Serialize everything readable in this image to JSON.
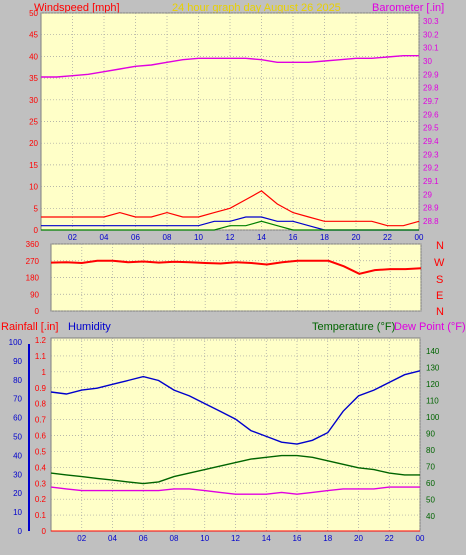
{
  "header": {
    "windspeed_label": "Windspeed [mph]",
    "title": "24 hour graph day   August 26 2025",
    "barometer_label": "Barometer [.in]"
  },
  "colors": {
    "plot_bg": "#ffffc8",
    "frame": "#c0c0c0",
    "grid": "#a0a0a0",
    "red": "#ff0000",
    "blue": "#0000cc",
    "green": "#006400",
    "magenta": "#e000e0",
    "gold": "#d4b800"
  },
  "time_axis": {
    "ticks": [
      "02",
      "04",
      "06",
      "08",
      "10",
      "12",
      "14",
      "16",
      "18",
      "20",
      "22",
      "00"
    ]
  },
  "wind_panel": {
    "left_ticks": [
      "0",
      "5",
      "10",
      "15",
      "20",
      "25",
      "30",
      "35",
      "40",
      "45",
      "50"
    ],
    "right_ticks": [
      "28.8",
      "28.9",
      "29",
      "29.1",
      "29.2",
      "29.3",
      "29.4",
      "29.5",
      "29.6",
      "29.7",
      "29.8",
      "29.9",
      "30",
      "30.1",
      "30.2",
      "30.3"
    ]
  },
  "dir_panel": {
    "left_ticks": [
      "0",
      "90",
      "180",
      "270",
      "360"
    ],
    "compass": [
      "N",
      "W",
      "S",
      "E",
      "N"
    ]
  },
  "bottom_panel": {
    "rainfall_label": "Rainfall [.in]",
    "humidity_label": "Humidity",
    "temperature_label": "Temperature (°F)",
    "dewpoint_label": "Dew Point (°F)",
    "humidity_ticks": [
      "0",
      "10",
      "20",
      "30",
      "40",
      "50",
      "60",
      "70",
      "80",
      "90",
      "100"
    ],
    "rain_ticks": [
      "0",
      "0.1",
      "0.2",
      "0.3",
      "0.4",
      "0.5",
      "0.6",
      "0.7",
      "0.8",
      "0.9",
      "1",
      "1.1",
      "1.2"
    ],
    "temp_ticks": [
      "40",
      "50",
      "60",
      "70",
      "80",
      "90",
      "100",
      "110",
      "120",
      "130",
      "140"
    ]
  },
  "chart_data": [
    {
      "type": "line",
      "ylabel": "Windspeed [mph]",
      "ylim": [
        0,
        50
      ],
      "y2label": "Barometer [.in]",
      "y2lim": [
        28.8,
        30.3
      ],
      "x": [
        0,
        1,
        2,
        3,
        4,
        5,
        6,
        7,
        8,
        9,
        10,
        11,
        12,
        13,
        14,
        15,
        16,
        17,
        18,
        19,
        20,
        21,
        22,
        23,
        24
      ],
      "series": [
        {
          "name": "Barometer [.in]",
          "axis": "right",
          "values": [
            29.88,
            29.88,
            29.89,
            29.9,
            29.92,
            29.94,
            29.96,
            29.97,
            29.99,
            30.01,
            30.02,
            30.02,
            30.02,
            30.02,
            30.01,
            29.99,
            29.99,
            29.99,
            30.0,
            30.01,
            30.02,
            30.02,
            30.03,
            30.04,
            30.04
          ]
        },
        {
          "name": "Windspeed [mph]",
          "kind": "gust",
          "values": [
            3,
            3,
            3,
            3,
            3,
            4,
            3,
            3,
            4,
            3,
            3,
            4,
            5,
            7,
            9,
            6,
            4,
            3,
            2,
            2,
            2,
            2,
            1,
            1,
            2
          ]
        },
        {
          "name": "Windspeed [mph]",
          "kind": "average",
          "values": [
            1,
            1,
            1,
            1,
            1,
            1,
            1,
            1,
            1,
            1,
            1,
            2,
            2,
            3,
            3,
            2,
            2,
            1,
            0,
            0,
            0,
            0,
            0,
            0,
            0
          ]
        },
        {
          "name": "Windspeed [mph]",
          "kind": "sustained",
          "values": [
            0,
            0,
            0,
            0,
            0,
            0,
            0,
            0,
            0,
            0,
            0,
            0,
            1,
            1,
            2,
            1,
            0,
            0,
            0,
            0,
            0,
            0,
            0,
            0,
            0
          ]
        }
      ]
    },
    {
      "type": "line",
      "ylim": [
        0,
        360
      ],
      "x": [
        0,
        1,
        2,
        3,
        4,
        5,
        6,
        7,
        8,
        9,
        10,
        11,
        12,
        13,
        14,
        15,
        16,
        17,
        18,
        19,
        20,
        21,
        22,
        23,
        24
      ],
      "series": [
        {
          "name": "Wind direction",
          "values": [
            260,
            262,
            258,
            270,
            270,
            262,
            266,
            260,
            265,
            262,
            258,
            255,
            262,
            258,
            250,
            262,
            270,
            270,
            270,
            240,
            200,
            220,
            225,
            225,
            230
          ]
        }
      ]
    },
    {
      "type": "line",
      "x": [
        0,
        1,
        2,
        3,
        4,
        5,
        6,
        7,
        8,
        9,
        10,
        11,
        12,
        13,
        14,
        15,
        16,
        17,
        18,
        19,
        20,
        21,
        22,
        23,
        24
      ],
      "series": [
        {
          "name": "Humidity",
          "axis": "humidity",
          "ylim": [
            0,
            100
          ],
          "values": [
            72,
            71,
            73,
            74,
            76,
            78,
            80,
            78,
            73,
            70,
            66,
            62,
            58,
            52,
            49,
            46,
            45,
            47,
            51,
            62,
            70,
            73,
            77,
            81,
            83
          ]
        },
        {
          "name": "Temperature (°F)",
          "axis": "temperature",
          "ylim": [
            35,
            145
          ],
          "values": [
            68,
            67,
            66,
            65,
            64,
            63,
            62,
            63,
            66,
            68,
            70,
            72,
            74,
            76,
            77,
            78,
            78,
            77,
            75,
            73,
            71,
            70,
            68,
            67,
            67
          ]
        },
        {
          "name": "Dew Point (°F)",
          "axis": "temperature",
          "ylim": [
            35,
            145
          ],
          "values": [
            60,
            59,
            58,
            58,
            58,
            58,
            58,
            58,
            59,
            59,
            58,
            57,
            56,
            56,
            56,
            57,
            56,
            57,
            58,
            59,
            59,
            59,
            60,
            60,
            60
          ]
        },
        {
          "name": "Rainfall [.in]",
          "axis": "rainfall",
          "ylim": [
            0,
            1.2
          ],
          "values": [
            0,
            0,
            0,
            0,
            0,
            0,
            0,
            0,
            0,
            0,
            0,
            0,
            0,
            0,
            0,
            0,
            0,
            0,
            0,
            0,
            0,
            0,
            0,
            0,
            0
          ]
        }
      ]
    }
  ]
}
